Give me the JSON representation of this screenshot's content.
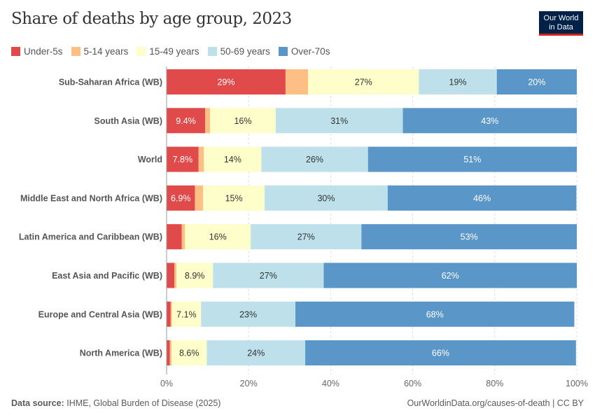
{
  "title": "Share of deaths by age group, 2023",
  "logo": {
    "line1": "Our World",
    "line2": "in Data"
  },
  "footer": {
    "source_label": "Data source:",
    "source": "IHME, Global Burden of Disease (2025)",
    "right": "OurWorldinData.org/causes-of-death | CC BY"
  },
  "chart_data": {
    "type": "bar",
    "orientation": "horizontal",
    "stacked": true,
    "title": "Share of deaths by age group, 2023",
    "xlim": [
      0,
      100
    ],
    "x_ticks": [
      "0%",
      "20%",
      "40%",
      "60%",
      "80%",
      "100%"
    ],
    "grid": true,
    "legend_position": "top-left",
    "categories": [
      "Sub-Saharan Africa (WB)",
      "South Asia (WB)",
      "World",
      "Middle East and North Africa (WB)",
      "Latin America and Caribbean (WB)",
      "East Asia and Pacific (WB)",
      "Europe and Central Asia (WB)",
      "North America (WB)"
    ],
    "series": [
      {
        "name": "Under-5s",
        "color": "#e04a4a",
        "text_color": "#ffffff",
        "values": [
          29,
          9.4,
          7.8,
          6.9,
          3.7,
          1.9,
          1.0,
          0.8
        ],
        "labels": [
          "29%",
          "9.4%",
          "7.8%",
          "6.9%",
          null,
          null,
          null,
          null
        ]
      },
      {
        "name": "5-14 years",
        "color": "#fdbf83",
        "text_color": "#333333",
        "values": [
          5.5,
          1.2,
          1.3,
          2.0,
          0.8,
          0.5,
          0.3,
          0.4
        ],
        "labels": [
          null,
          null,
          null,
          null,
          null,
          null,
          null,
          null
        ]
      },
      {
        "name": "15-49 years",
        "color": "#fefecb",
        "text_color": "#333333",
        "values": [
          27,
          16,
          14,
          15,
          16,
          8.9,
          7.1,
          8.6
        ],
        "labels": [
          "27%",
          "16%",
          "14%",
          "15%",
          "16%",
          "8.9%",
          "7.1%",
          "8.6%"
        ]
      },
      {
        "name": "50-69 years",
        "color": "#bde0ea",
        "text_color": "#333333",
        "values": [
          19,
          31,
          26,
          30,
          27,
          27,
          23,
          24
        ],
        "labels": [
          "19%",
          "31%",
          "26%",
          "30%",
          "27%",
          "27%",
          "23%",
          "24%"
        ]
      },
      {
        "name": "Over-70s",
        "color": "#5a96c8",
        "text_color": "#ffffff",
        "values": [
          20,
          43,
          51,
          46,
          53,
          62,
          68,
          66
        ],
        "labels": [
          "20%",
          "43%",
          "51%",
          "46%",
          "53%",
          "62%",
          "68%",
          "66%"
        ]
      }
    ]
  }
}
